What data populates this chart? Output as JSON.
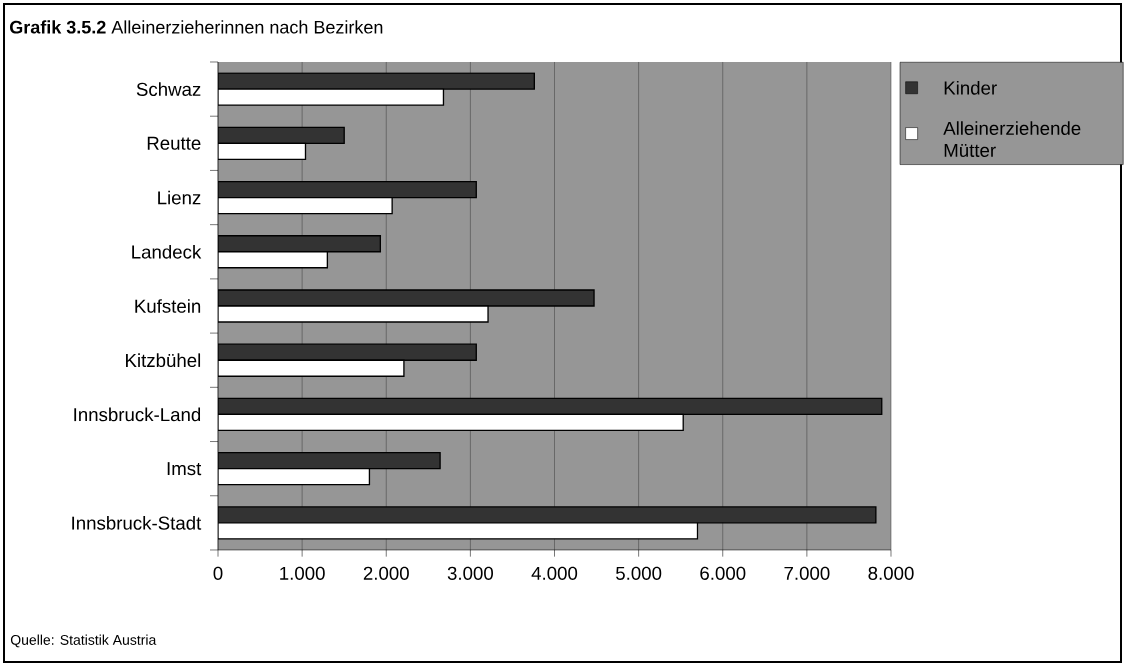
{
  "chart_data": {
    "type": "bar",
    "orientation": "horizontal",
    "title": "**Grafik 3.5.2** Alleinerzieherinnen nach Bezirken",
    "categories": [
      "Schwaz",
      "Reutte",
      "Lienz",
      "Landeck",
      "Kufstein",
      "Kitzbühel",
      "Innsbruck-Land",
      "Imst",
      "Innsbruck-Stadt"
    ],
    "series": [
      {
        "name": "Kinder",
        "color": "#333333",
        "values": [
          3760,
          1500,
          3070,
          1930,
          4470,
          3070,
          7890,
          2640,
          7820
        ]
      },
      {
        "name": "Alleinerziehende Mütter",
        "color": "#ffffff",
        "values": [
          2680,
          1040,
          2070,
          1300,
          3210,
          2210,
          5530,
          1800,
          5700
        ]
      }
    ],
    "xlim": [
      0,
      8000
    ],
    "xticks": [
      0,
      {
        "value": 1000,
        "label": "1.000"
      },
      {
        "value": 2000,
        "label": "2.000"
      },
      {
        "value": 3000,
        "label": "3.000"
      },
      {
        "value": 4000,
        "label": "4.000"
      },
      {
        "value": 5000,
        "label": "5.000"
      },
      {
        "value": 6000,
        "label": "6.000"
      },
      {
        "value": 7000,
        "label": "7.000"
      },
      {
        "value": 8000,
        "label": "8.000"
      }
    ],
    "grid": "x",
    "legend": "top right",
    "annotations": [
      "Quelle: Statistik Austria"
    ]
  }
}
